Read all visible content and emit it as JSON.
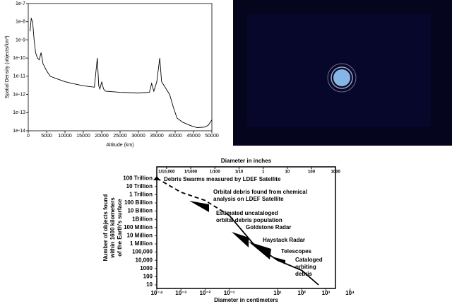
{
  "chart_data": [
    {
      "type": "line",
      "x_label": "Altitude (km)",
      "y_label": "Spatial Density (objects/km³)",
      "log_y": true,
      "grid": false,
      "series": [
        {
          "color": "#000000",
          "x": [
            500,
            800,
            1200,
            1600,
            2000,
            2500,
            3000,
            3500,
            4000,
            5000,
            6000,
            8000,
            10000,
            12000,
            15000,
            18000,
            18800,
            19200,
            19500,
            20000,
            20500,
            21000,
            25000,
            30000,
            33000,
            33600,
            34200,
            35000,
            35800,
            36300,
            37000,
            38500,
            39500,
            40500,
            42000,
            44000,
            46000,
            48000,
            49000,
            50000
          ],
          "values": [
            3e-09,
            1.5e-08,
            1e-08,
            1e-09,
            2e-10,
            1e-10,
            8e-11,
            2e-10,
            5e-11,
            2e-11,
            1e-11,
            7e-12,
            5e-12,
            4e-12,
            3e-12,
            2.5e-12,
            1e-10,
            3e-12,
            2e-12,
            5e-12,
            2e-12,
            1.5e-12,
            1.3e-12,
            1.2e-12,
            1.3e-12,
            4e-12,
            1.5e-12,
            5e-12,
            1e-10,
            5e-12,
            3e-12,
            1e-12,
            2e-13,
            5e-14,
            3e-14,
            2e-14,
            1.5e-14,
            1.6e-14,
            2e-14,
            4e-14
          ]
        }
      ],
      "xlim": [
        0,
        50000
      ],
      "xticks": [
        0,
        5000,
        10000,
        15000,
        20000,
        25000,
        30000,
        35000,
        40000,
        45000,
        50000
      ],
      "ylim": [
        1e-14,
        1e-07
      ],
      "yticks": [
        {
          "value": 1e-14,
          "label": "1e-14"
        },
        {
          "value": 1e-13,
          "label": "1e-13"
        },
        {
          "value": 1e-12,
          "label": "1e-12"
        },
        {
          "value": 1e-11,
          "label": "1e-11"
        },
        {
          "value": 1e-10,
          "label": "1e-10"
        },
        {
          "value": 1e-09,
          "label": "1e-9"
        },
        {
          "value": 1e-08,
          "label": "1e-8"
        },
        {
          "value": 1e-07,
          "label": "1e-7"
        }
      ]
    },
    {
      "type": "line",
      "x_label": "Diameter in centimeters",
      "x2_label": "Diameter in inches",
      "y_label": [
        "Number of objects found",
        "within 1600 kilometers",
        "of the Earth's surface"
      ],
      "log_x": true,
      "log_y": true,
      "grid": false,
      "series": [
        {
          "color": "#000000",
          "dashed": true,
          "x": [
            0.0001,
            0.001,
            0.01,
            0.1
          ],
          "values": [
            100000000000000.0,
            2000000000000.0,
            200000000000.0,
            3000000000.0
          ]
        },
        {
          "color": "#000000",
          "dashed": false,
          "x": [
            0.1,
            1,
            10,
            100,
            500
          ],
          "values": [
            3000000000.0,
            1000000.0,
            10000,
            600,
            10
          ]
        }
      ],
      "xlim": [
        0.0001,
        2500
      ],
      "xticks": [
        {
          "value": 0.0001,
          "label": "10⁻⁴"
        },
        {
          "value": 0.001,
          "label": "10⁻³"
        },
        {
          "value": 0.01,
          "label": "10⁻²"
        },
        {
          "value": 0.1,
          "label": "10⁻¹"
        },
        {
          "value": 10,
          "label": "10¹"
        },
        {
          "value": 100,
          "label": "10²"
        },
        {
          "value": 1000,
          "label": "10³"
        },
        {
          "value": 10000,
          "label": "10⁴"
        }
      ],
      "x2lim": [
        3.94e-05,
        984
      ],
      "x2ticks": [
        {
          "value": 0.0001,
          "label": "1/10,000"
        },
        {
          "value": 0.001,
          "label": "1/1000"
        },
        {
          "value": 0.01,
          "label": "1/100"
        },
        {
          "value": 0.1,
          "label": "1/10"
        },
        1,
        10,
        100,
        1000
      ],
      "ylim": [
        3.7,
        2500000000000000.0
      ],
      "yticks": [
        {
          "value": 100000000000000.0,
          "label": "100 Trillion"
        },
        {
          "value": 10000000000000.0,
          "label": "10 Trillion"
        },
        {
          "value": 1000000000000.0,
          "label": "1 Trillion"
        },
        {
          "value": 100000000000.0,
          "label": "100 Billion"
        },
        {
          "value": 10000000000.0,
          "label": "10 Billion"
        },
        {
          "value": 1000000000.0,
          "label": "1Billion"
        },
        {
          "value": 100000000.0,
          "label": "100 Million"
        },
        {
          "value": 10000000.0,
          "label": "10 Million"
        },
        {
          "value": 1000000.0,
          "label": "1 Million"
        },
        {
          "value": 100000,
          "label": "100,000"
        },
        {
          "value": 10000,
          "label": "10,000"
        },
        {
          "value": 1000,
          "label": "1000"
        },
        100,
        10
      ],
      "annotations": [
        [
          "Debris Swarms measured by LDEF Satellite"
        ],
        [
          "Orbital debris found from chemical",
          "analysis on LDEF Satellite"
        ],
        [
          "Estimated uncataloged",
          "orbital debris population"
        ],
        [
          "Goldstone Radar"
        ],
        [
          "Haystack Radar"
        ],
        [
          "Telescopes"
        ],
        [
          "Cataloged",
          "orbiting",
          "debris"
        ]
      ]
    }
  ]
}
